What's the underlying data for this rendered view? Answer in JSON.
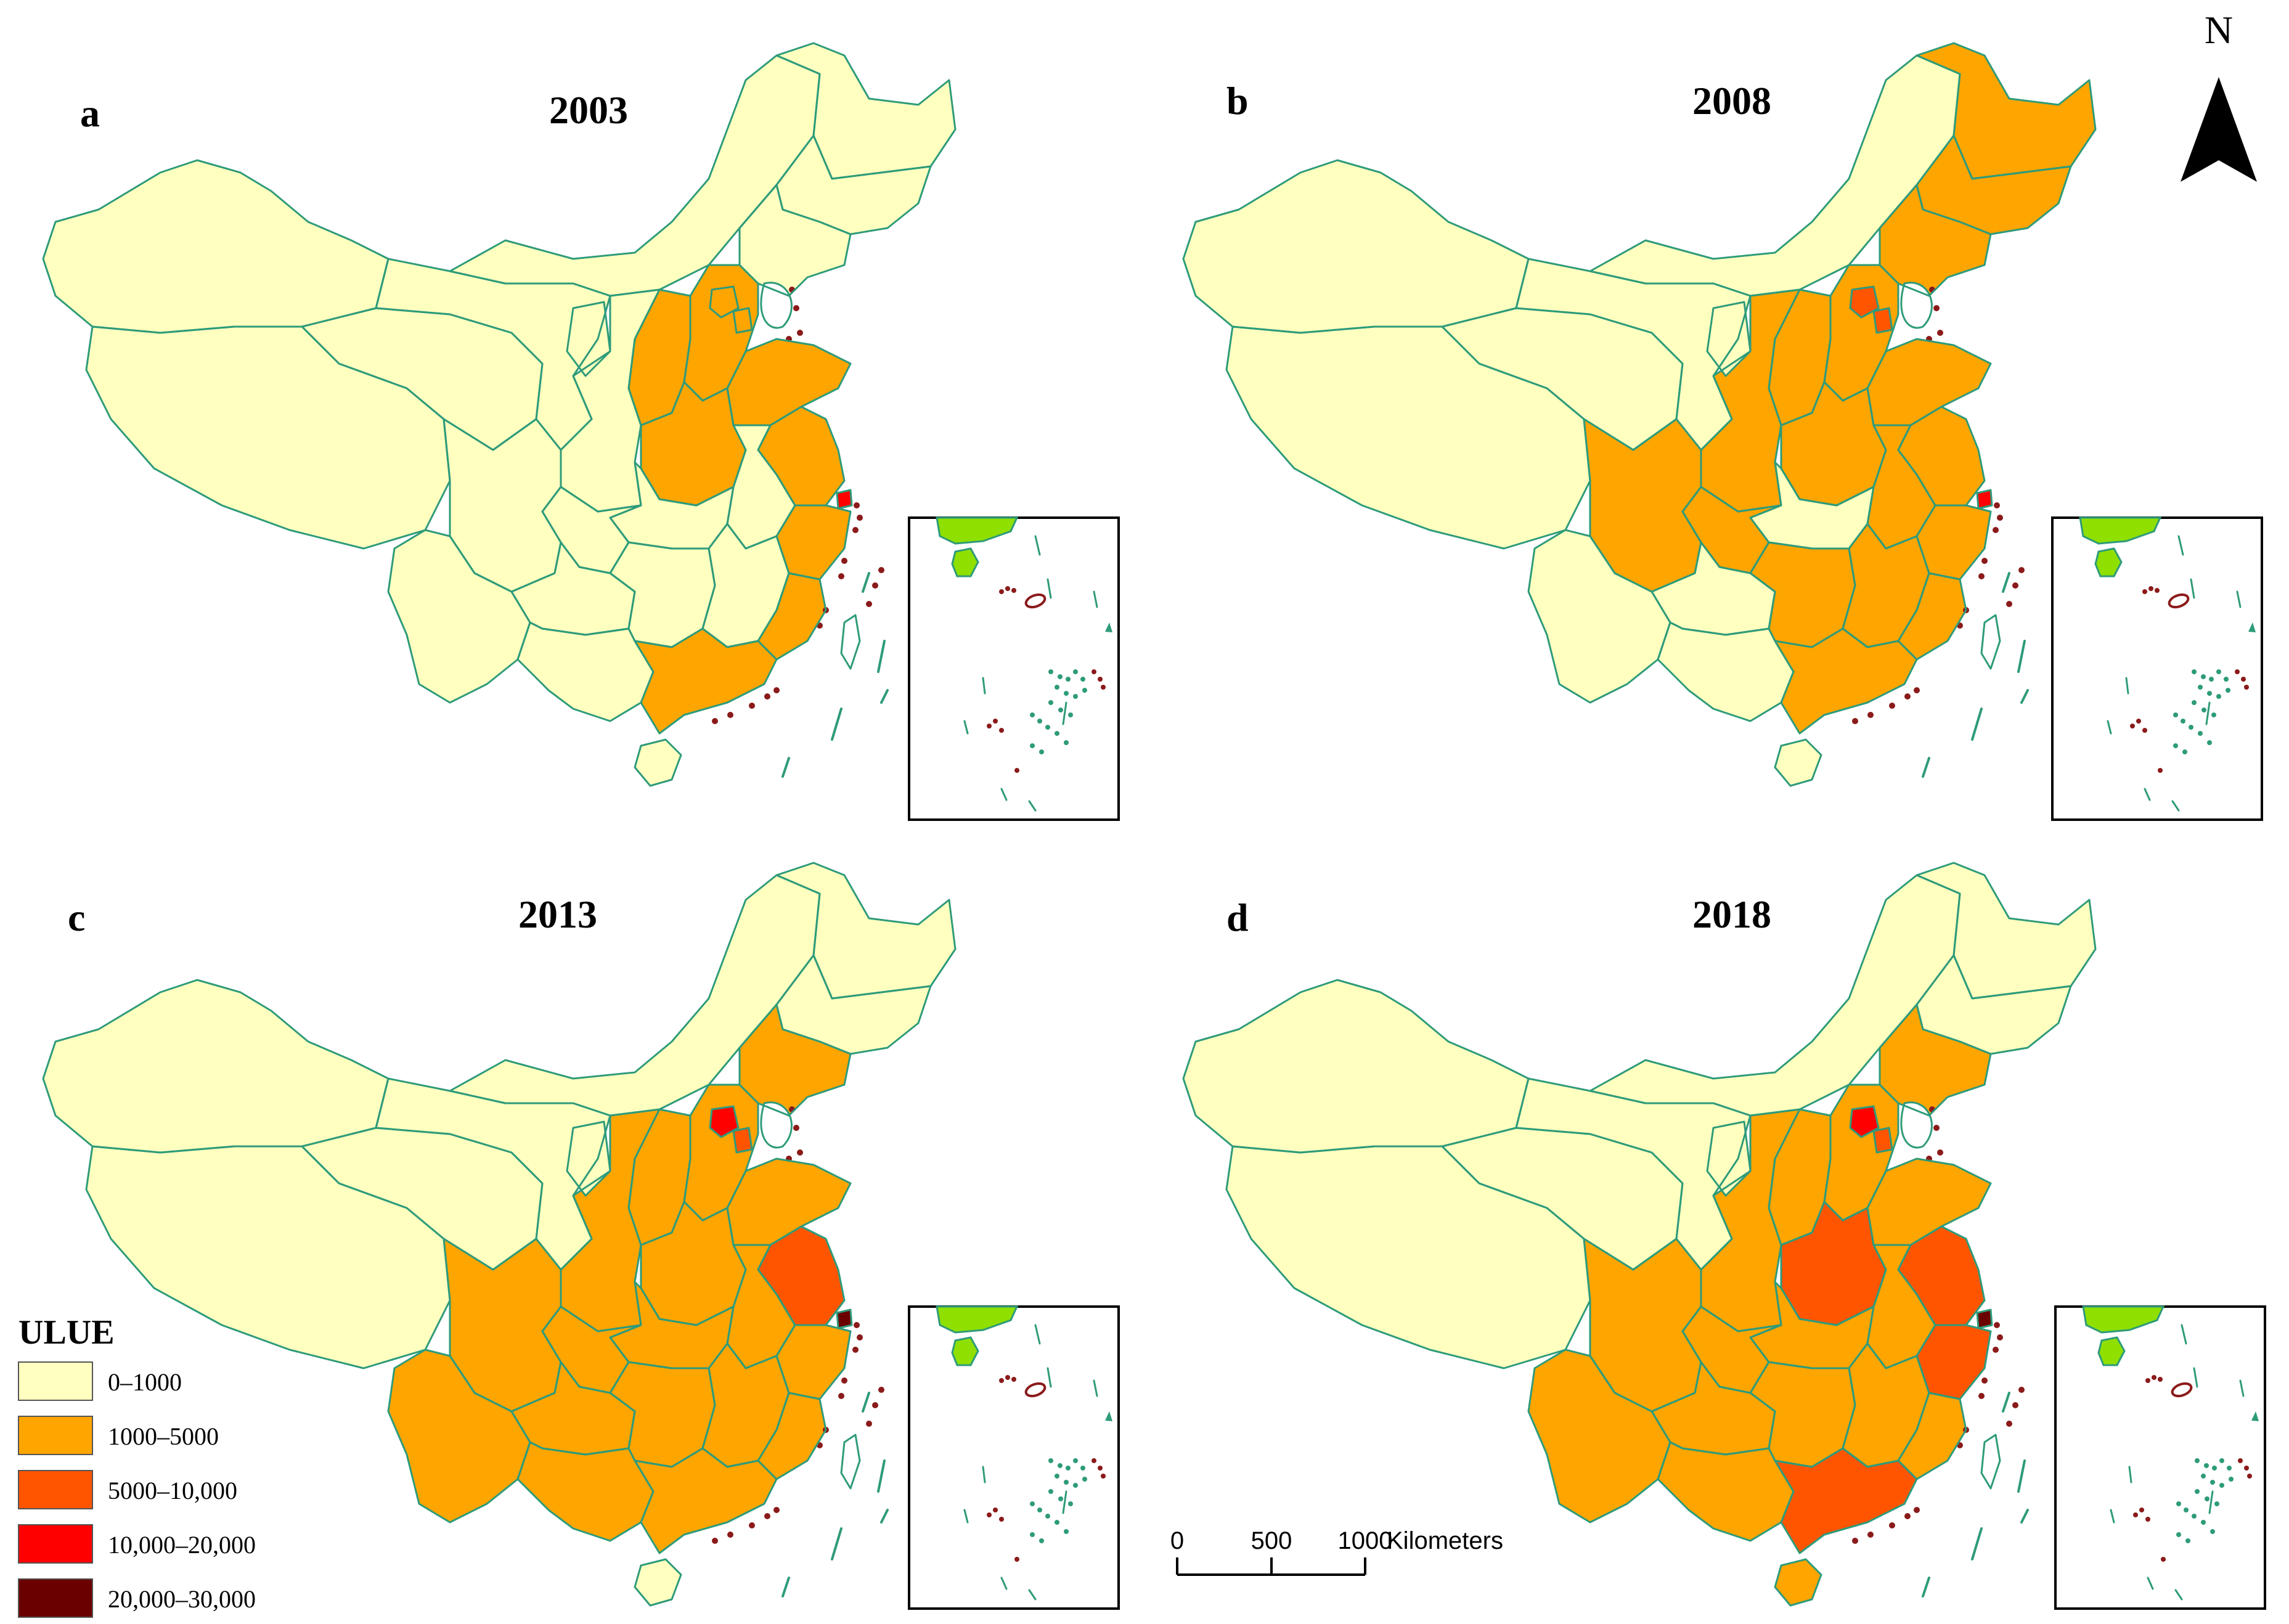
{
  "colors": {
    "class_0_1000": "#FFFFC0",
    "class_1000_5000": "#FFA500",
    "class_5000_10000": "#FF5500",
    "class_10000_20000": "#FF0000",
    "class_20000_30000": "#6B0000",
    "boundary": "#2E9B7A",
    "island": "#8B1A1A",
    "inset_land": "#8FE000"
  },
  "panels": [
    {
      "letter": "a",
      "year": "2003",
      "classes": {
        "xinjiang": 0,
        "tibet": 0,
        "qinghai": 0,
        "gansu": 0,
        "inner_mongolia": 0,
        "heilongjiang": 0,
        "jilin": 0,
        "liaoning": 0,
        "hebei": 1,
        "beijing": 1,
        "tianjin": 1,
        "shandong": 1,
        "shanxi": 1,
        "shaanxi": 0,
        "ningxia": 0,
        "henan": 1,
        "jiangsu": 1,
        "shanghai": 3,
        "zhejiang": 1,
        "anhui": 0,
        "hubei": 0,
        "chongqing": 0,
        "sichuan": 0,
        "yunnan": 0,
        "guizhou": 0,
        "hunan": 0,
        "jiangxi": 0,
        "fujian": 1,
        "guangdong": 1,
        "guangxi": 0,
        "hainan": 0
      }
    },
    {
      "letter": "b",
      "year": "2008",
      "classes": {
        "xinjiang": 0,
        "tibet": 0,
        "qinghai": 0,
        "gansu": 0,
        "inner_mongolia": 0,
        "heilongjiang": 1,
        "jilin": 1,
        "liaoning": 1,
        "hebei": 1,
        "beijing": 2,
        "tianjin": 2,
        "shandong": 1,
        "shanxi": 1,
        "shaanxi": 1,
        "ningxia": 0,
        "henan": 1,
        "jiangsu": 1,
        "shanghai": 3,
        "zhejiang": 1,
        "anhui": 1,
        "hubei": 0,
        "chongqing": 1,
        "sichuan": 1,
        "yunnan": 0,
        "guizhou": 0,
        "hunan": 1,
        "jiangxi": 1,
        "fujian": 1,
        "guangdong": 1,
        "guangxi": 0,
        "hainan": 0
      }
    },
    {
      "letter": "c",
      "year": "2013",
      "classes": {
        "xinjiang": 0,
        "tibet": 0,
        "qinghai": 0,
        "gansu": 0,
        "inner_mongolia": 0,
        "heilongjiang": 0,
        "jilin": 0,
        "liaoning": 1,
        "hebei": 1,
        "beijing": 3,
        "tianjin": 2,
        "shandong": 1,
        "shanxi": 1,
        "shaanxi": 1,
        "ningxia": 0,
        "henan": 1,
        "jiangsu": 2,
        "shanghai": 4,
        "zhejiang": 1,
        "anhui": 1,
        "hubei": 1,
        "chongqing": 1,
        "sichuan": 1,
        "yunnan": 1,
        "guizhou": 1,
        "hunan": 1,
        "jiangxi": 1,
        "fujian": 1,
        "guangdong": 1,
        "guangxi": 1,
        "hainan": 0
      }
    },
    {
      "letter": "d",
      "year": "2018",
      "classes": {
        "xinjiang": 0,
        "tibet": 0,
        "qinghai": 0,
        "gansu": 0,
        "inner_mongolia": 0,
        "heilongjiang": 0,
        "jilin": 0,
        "liaoning": 1,
        "hebei": 1,
        "beijing": 3,
        "tianjin": 2,
        "shandong": 1,
        "shanxi": 1,
        "shaanxi": 1,
        "ningxia": 0,
        "henan": 2,
        "jiangsu": 2,
        "shanghai": 4,
        "zhejiang": 2,
        "anhui": 1,
        "hubei": 1,
        "chongqing": 1,
        "sichuan": 1,
        "yunnan": 1,
        "guizhou": 1,
        "hunan": 1,
        "jiangxi": 1,
        "fujian": 1,
        "guangdong": 2,
        "guangxi": 1,
        "hainan": 1
      }
    }
  ],
  "legend": {
    "title": "ULUE",
    "items": [
      {
        "label": "0–1000",
        "color": "#FFFFC0"
      },
      {
        "label": "1000–5000",
        "color": "#FFA500"
      },
      {
        "label": "5000–10,000",
        "color": "#FF5500"
      },
      {
        "label": "10,000–20,000",
        "color": "#FF0000"
      },
      {
        "label": "20,000–30,000",
        "color": "#6B0000"
      }
    ]
  },
  "north_arrow": {
    "label": "N"
  },
  "scale_bar": {
    "ticks": [
      "0",
      "500",
      "1000"
    ],
    "unit": "Kilometers"
  }
}
